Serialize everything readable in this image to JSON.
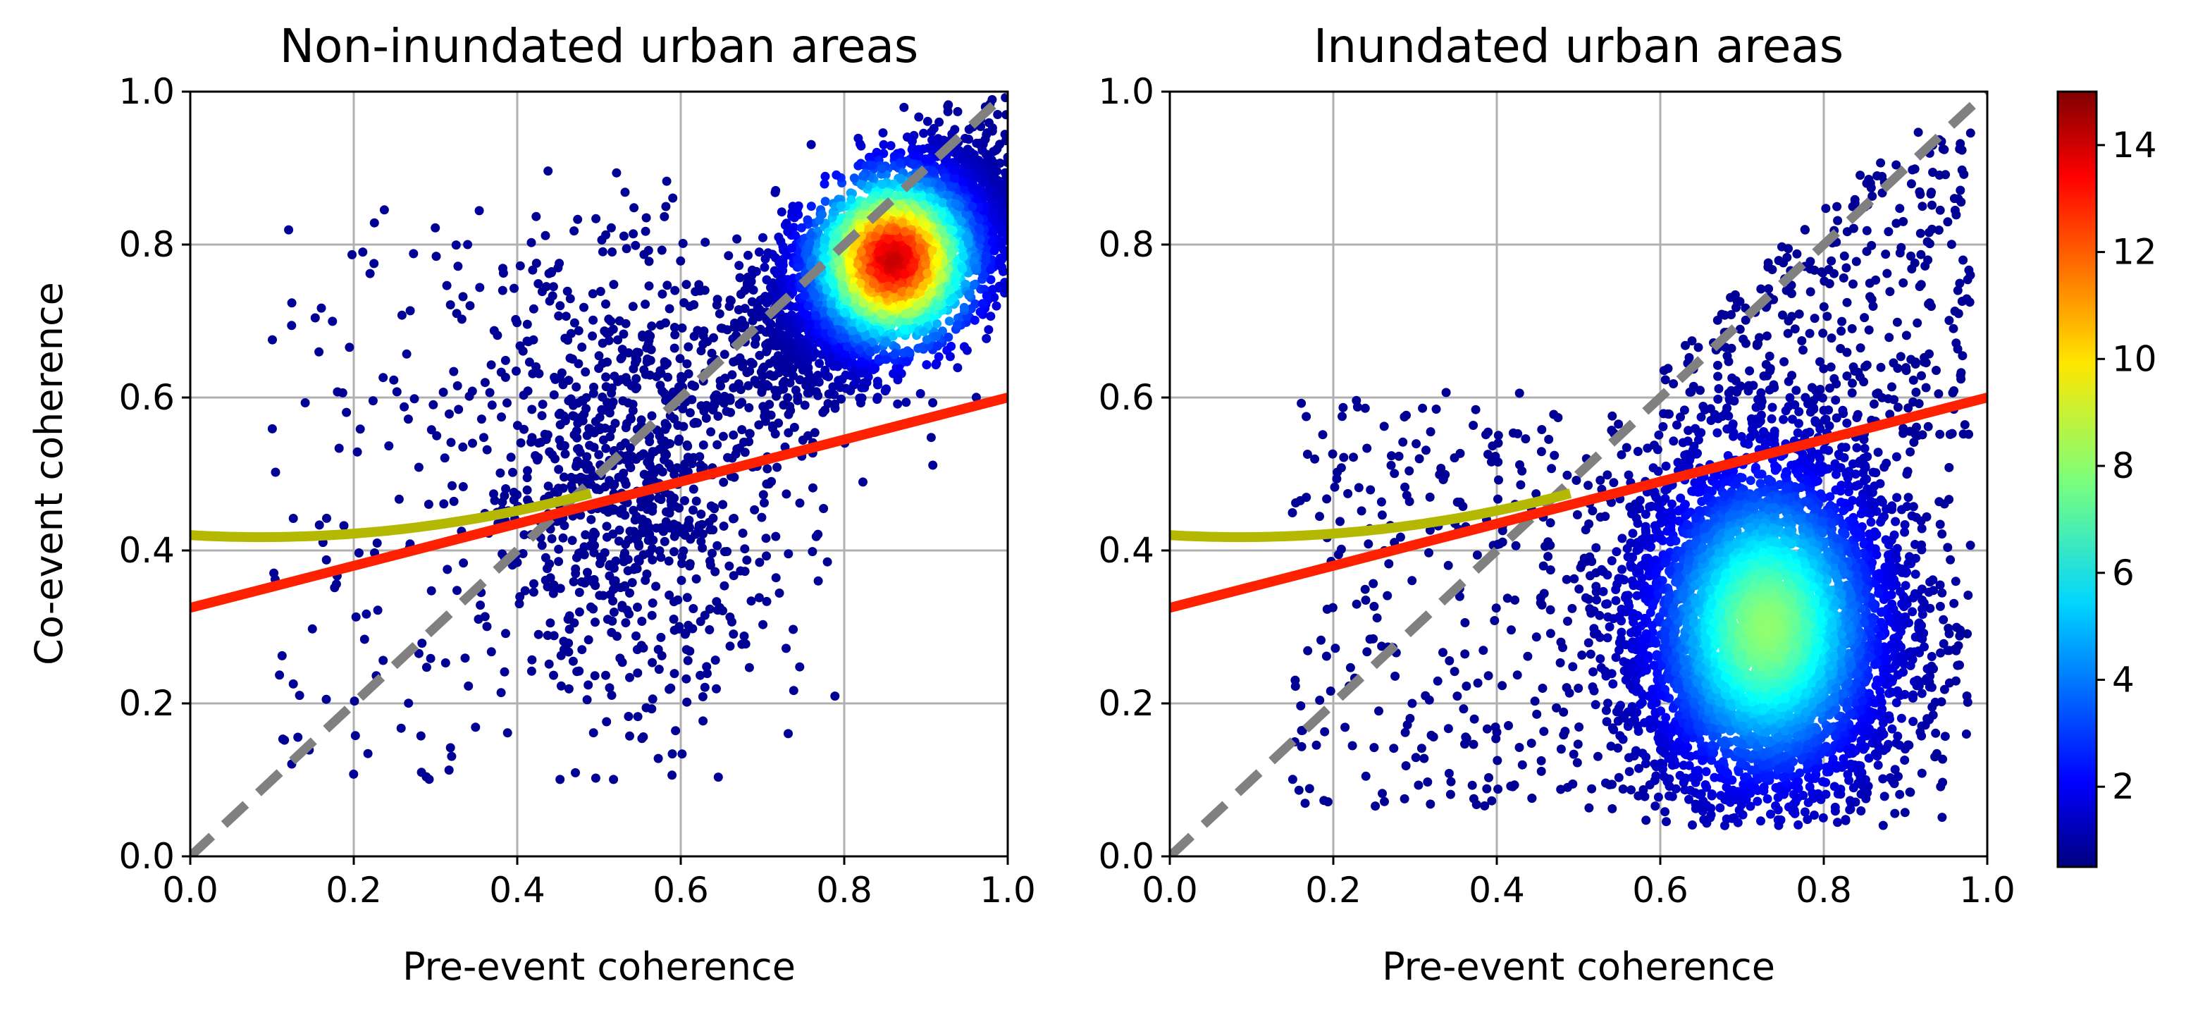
{
  "figure": {
    "colorbar": {
      "min": 0.5,
      "max": 15,
      "ticks": [
        2,
        4,
        6,
        8,
        10,
        12,
        14
      ],
      "tick_labels": [
        "2",
        "4",
        "6",
        "8",
        "10",
        "12",
        "14"
      ],
      "colormap": "jet"
    }
  },
  "chart_data": [
    {
      "type": "scatter",
      "title": "Non-inundated urban areas",
      "xlabel": "Pre-event coherence",
      "ylabel": "Co-event coherence",
      "xlim": [
        0.0,
        1.0
      ],
      "ylim": [
        0.0,
        1.0
      ],
      "xticks": [
        "0.0",
        "0.2",
        "0.4",
        "0.6",
        "0.8",
        "1.0"
      ],
      "yticks": [
        "0.0",
        "0.2",
        "0.4",
        "0.6",
        "0.8",
        "1.0"
      ],
      "grid": true,
      "density_colored": true,
      "cluster": {
        "center": [
          0.86,
          0.78
        ],
        "peak_density": 14,
        "spread": "elongated along 1:1 line"
      },
      "series": [
        {
          "name": "1:1 line",
          "style": "dashed",
          "color": "#808080",
          "x": [
            0.0,
            1.0
          ],
          "y": [
            0.0,
            1.0
          ]
        },
        {
          "name": "linear fit",
          "style": "solid",
          "color": "#ff2000",
          "x": [
            0.0,
            1.0
          ],
          "y": [
            0.325,
            0.6
          ]
        },
        {
          "name": "polynomial fit",
          "style": "solid",
          "color": "#b5b800",
          "x": [
            0.0,
            0.1,
            0.2,
            0.3,
            0.4,
            0.5
          ],
          "y": [
            0.42,
            0.418,
            0.422,
            0.43,
            0.448,
            0.478
          ]
        }
      ]
    },
    {
      "type": "scatter",
      "title": "Inundated urban areas",
      "xlabel": "Pre-event coherence",
      "ylabel": "",
      "xlim": [
        0.0,
        1.0
      ],
      "ylim": [
        0.0,
        1.0
      ],
      "xticks": [
        "0.0",
        "0.2",
        "0.4",
        "0.6",
        "0.8",
        "1.0"
      ],
      "yticks": [
        "0.0",
        "0.2",
        "0.4",
        "0.6",
        "0.8",
        "1.0"
      ],
      "grid": true,
      "density_colored": true,
      "cluster": {
        "center": [
          0.73,
          0.3
        ],
        "peak_density": 8,
        "spread": "broad, below 1:1 line"
      },
      "series": [
        {
          "name": "1:1 line",
          "style": "dashed",
          "color": "#808080",
          "x": [
            0.0,
            1.0
          ],
          "y": [
            0.0,
            1.0
          ]
        },
        {
          "name": "linear fit",
          "style": "solid",
          "color": "#ff2000",
          "x": [
            0.0,
            1.0
          ],
          "y": [
            0.325,
            0.6
          ]
        },
        {
          "name": "polynomial fit",
          "style": "solid",
          "color": "#b5b800",
          "x": [
            0.0,
            0.1,
            0.2,
            0.3,
            0.4,
            0.5
          ],
          "y": [
            0.42,
            0.418,
            0.422,
            0.43,
            0.448,
            0.478
          ]
        }
      ]
    }
  ]
}
